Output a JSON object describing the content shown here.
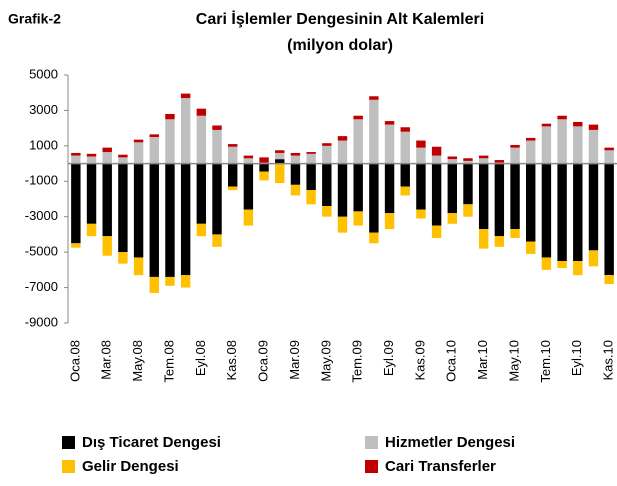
{
  "chart_data": {
    "type": "stacked_bar",
    "label": "Grafik-2",
    "title": "Cari İşlemler Dengesinin Alt Kalemleri",
    "subtitle": "(milyon dolar)",
    "categories": [
      "Oca.08",
      null,
      "Mar.08",
      null,
      "May.08",
      null,
      "Tem.08",
      null,
      "Eyl.08",
      null,
      "Kas.08",
      null,
      "Oca.09",
      null,
      "Mar.09",
      null,
      "May.09",
      null,
      "Tem.09",
      null,
      "Eyl.09",
      null,
      "Kas.09",
      null,
      "Oca.10",
      null,
      "Mar.10",
      null,
      "May.10",
      null,
      "Tem.10",
      null,
      "Eyl.10",
      null,
      "Kas.10"
    ],
    "series": [
      {
        "name": "Dış Ticaret Dengesi",
        "color": "#000000",
        "values": [
          -4500,
          -3400,
          -4100,
          -5000,
          -5300,
          -6400,
          -6400,
          -6300,
          -3400,
          -4000,
          -1300,
          -2600,
          -450,
          250,
          -1200,
          -1500,
          -2400,
          -3000,
          -2700,
          -3900,
          -2800,
          -1300,
          -2600,
          -3500,
          -2800,
          -2300,
          -3700,
          -4100,
          -3700,
          -4400,
          -5300,
          -5500,
          -5500,
          -4900,
          -6300
        ]
      },
      {
        "name": "Hizmetler Dengesi",
        "color": "#bfbfbf",
        "values": [
          450,
          400,
          650,
          350,
          1200,
          1500,
          2500,
          3700,
          2700,
          1900,
          950,
          300,
          50,
          350,
          450,
          550,
          1000,
          1300,
          2500,
          3600,
          2200,
          1800,
          900,
          450,
          250,
          150,
          300,
          50,
          900,
          1300,
          2100,
          2500,
          2100,
          1900,
          750
        ]
      },
      {
        "name": "Gelir Dengesi",
        "color": "#ffc000",
        "values": [
          -250,
          -700,
          -1100,
          -650,
          -1000,
          -900,
          -500,
          -700,
          -700,
          -700,
          -200,
          -900,
          -500,
          -1100,
          -600,
          -800,
          -600,
          -900,
          -800,
          -600,
          -900,
          -500,
          -500,
          -700,
          -600,
          -700,
          -1100,
          -600,
          -500,
          -700,
          -700,
          -400,
          -800,
          -900,
          -500
        ]
      },
      {
        "name": "Cari Transferler",
        "color": "#c00000",
        "values": [
          150,
          150,
          250,
          150,
          150,
          150,
          300,
          250,
          400,
          250,
          150,
          150,
          300,
          150,
          150,
          100,
          150,
          250,
          200,
          200,
          200,
          250,
          400,
          500,
          150,
          150,
          150,
          150,
          150,
          150,
          150,
          200,
          250,
          300,
          150
        ]
      }
    ],
    "ylim": [
      -9000,
      5000
    ],
    "yticks": [
      5000,
      3000,
      1000,
      -1000,
      -3000,
      -5000,
      -7000,
      -9000
    ]
  }
}
